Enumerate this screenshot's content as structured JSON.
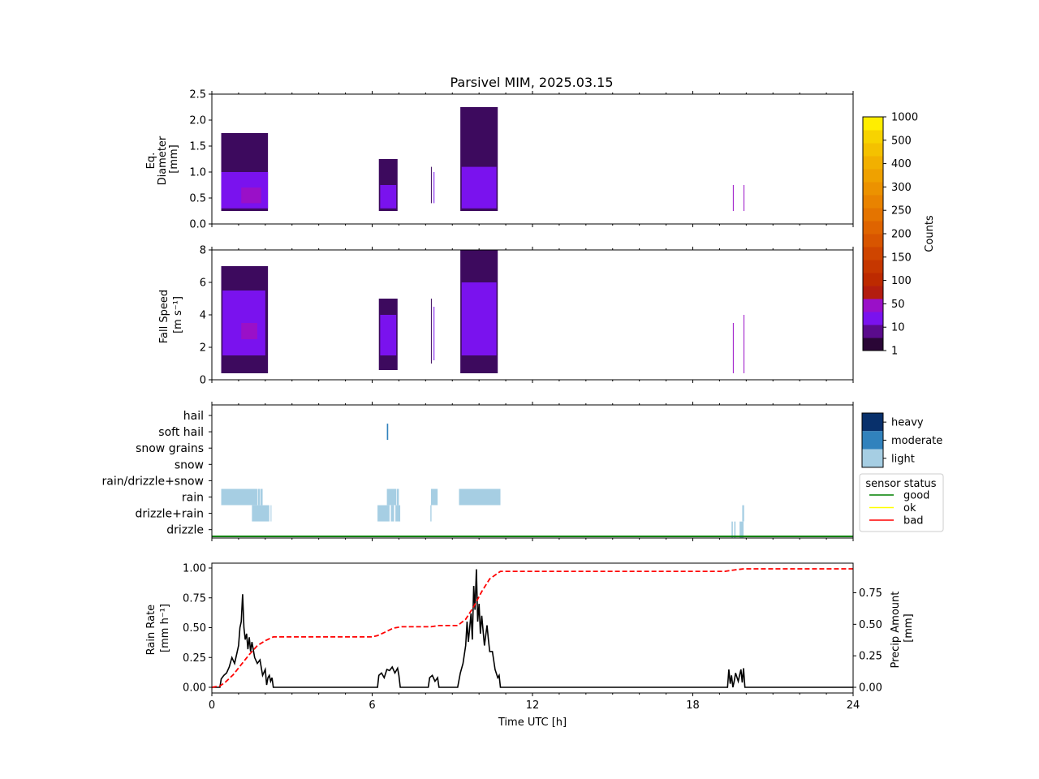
{
  "chart_data": [
    {
      "type": "heatmap",
      "title": "Parsivel MIM, 2025.03.15",
      "ylabel_lines": [
        "Eq.",
        "Diameter",
        "[mm]"
      ],
      "xlim": [
        0,
        24
      ],
      "ylim": [
        0,
        2.5
      ],
      "yticks": [
        "0.0",
        "0.5",
        "1.0",
        "1.5",
        "2.0",
        "2.5"
      ],
      "ytick_values": [
        0,
        0.5,
        1.0,
        1.5,
        2.0,
        2.5
      ],
      "blocks": [
        {
          "t0": 0.35,
          "t1": 2.1,
          "y0": 0.25,
          "y1": 1.75,
          "color": "#3d0a5e"
        },
        {
          "t0": 0.35,
          "t1": 2.1,
          "y0": 0.3,
          "y1": 1.0,
          "color": "#7a12ee"
        },
        {
          "t0": 1.1,
          "t1": 1.85,
          "y0": 0.4,
          "y1": 0.7,
          "color": "#9a10c8"
        },
        {
          "t0": 6.25,
          "t1": 6.95,
          "y0": 0.25,
          "y1": 1.25,
          "color": "#3d0a5e"
        },
        {
          "t0": 6.3,
          "t1": 6.9,
          "y0": 0.3,
          "y1": 0.75,
          "color": "#7a12ee"
        },
        {
          "t0": 8.2,
          "t1": 8.23,
          "y0": 0.4,
          "y1": 1.1,
          "color": "#3d0a5e"
        },
        {
          "t0": 8.3,
          "t1": 8.33,
          "y0": 0.4,
          "y1": 1.0,
          "color": "#7a12ee"
        },
        {
          "t0": 9.3,
          "t1": 10.7,
          "y0": 0.25,
          "y1": 2.25,
          "color": "#3d0a5e"
        },
        {
          "t0": 9.35,
          "t1": 10.65,
          "y0": 0.3,
          "y1": 1.1,
          "color": "#7a12ee"
        },
        {
          "t0": 19.5,
          "t1": 19.53,
          "y0": 0.25,
          "y1": 0.75,
          "color": "#9a10c8"
        },
        {
          "t0": 19.9,
          "t1": 19.93,
          "y0": 0.25,
          "y1": 0.75,
          "color": "#9a10c8"
        }
      ]
    },
    {
      "type": "heatmap",
      "ylabel_lines": [
        "Fall Speed",
        "[m s⁻¹]"
      ],
      "xlim": [
        0,
        24
      ],
      "ylim": [
        0,
        8
      ],
      "yticks": [
        "0",
        "2",
        "4",
        "6",
        "8"
      ],
      "ytick_values": [
        0,
        2,
        4,
        6,
        8
      ],
      "blocks": [
        {
          "t0": 0.35,
          "t1": 2.1,
          "y0": 0.4,
          "y1": 7.0,
          "color": "#3d0a5e"
        },
        {
          "t0": 0.4,
          "t1": 2.0,
          "y0": 1.5,
          "y1": 5.5,
          "color": "#7a12ee"
        },
        {
          "t0": 1.1,
          "t1": 1.7,
          "y0": 2.5,
          "y1": 3.5,
          "color": "#9a10c8"
        },
        {
          "t0": 6.25,
          "t1": 6.95,
          "y0": 0.6,
          "y1": 5.0,
          "color": "#3d0a5e"
        },
        {
          "t0": 6.3,
          "t1": 6.9,
          "y0": 1.5,
          "y1": 4.0,
          "color": "#7a12ee"
        },
        {
          "t0": 8.2,
          "t1": 8.23,
          "y0": 1.0,
          "y1": 5.0,
          "color": "#3d0a5e"
        },
        {
          "t0": 8.3,
          "t1": 8.33,
          "y0": 1.2,
          "y1": 4.5,
          "color": "#7a12ee"
        },
        {
          "t0": 9.3,
          "t1": 10.7,
          "y0": 0.4,
          "y1": 8.0,
          "color": "#3d0a5e"
        },
        {
          "t0": 9.35,
          "t1": 10.65,
          "y0": 1.5,
          "y1": 6.0,
          "color": "#7a12ee"
        },
        {
          "t0": 19.5,
          "t1": 19.53,
          "y0": 0.4,
          "y1": 3.5,
          "color": "#9a10c8"
        },
        {
          "t0": 19.9,
          "t1": 19.93,
          "y0": 0.4,
          "y1": 4.0,
          "color": "#9a10c8"
        }
      ],
      "colorbar": {
        "label": "Counts",
        "ticks": [
          "1",
          "10",
          "50",
          "100",
          "150",
          "200",
          "250",
          "300",
          "400",
          "500",
          "1000"
        ],
        "colors": [
          "#2a0636",
          "#5a0b8c",
          "#7a12ee",
          "#9a10c8",
          "#b31d0f",
          "#bd2a00",
          "#c63700",
          "#cf4500",
          "#d85500",
          "#df6400",
          "#e47400",
          "#e98300",
          "#ec9200",
          "#efa100",
          "#f2b000",
          "#f4c100",
          "#f7d300",
          "#ffee00"
        ]
      }
    },
    {
      "type": "categorical",
      "categories": [
        "hail",
        "soft hail",
        "snow grains",
        "snow",
        "rain/drizzle+snow",
        "rain",
        "drizzle+rain",
        "drizzle"
      ],
      "xlim": [
        0,
        24
      ],
      "segments": [
        {
          "cat": "rain",
          "t0": 0.35,
          "t1": 1.7,
          "intensity": "light"
        },
        {
          "cat": "rain",
          "t0": 1.72,
          "t1": 1.8,
          "intensity": "light"
        },
        {
          "cat": "rain",
          "t0": 1.82,
          "t1": 1.9,
          "intensity": "light"
        },
        {
          "cat": "drizzle+rain",
          "t0": 1.5,
          "t1": 2.15,
          "intensity": "light"
        },
        {
          "cat": "drizzle+rain",
          "t0": 2.2,
          "t1": 2.23,
          "intensity": "light"
        },
        {
          "cat": "rain",
          "t0": 6.55,
          "t1": 6.9,
          "intensity": "light"
        },
        {
          "cat": "rain",
          "t0": 6.92,
          "t1": 7.0,
          "intensity": "light"
        },
        {
          "cat": "drizzle+rain",
          "t0": 6.2,
          "t1": 6.65,
          "intensity": "light"
        },
        {
          "cat": "drizzle+rain",
          "t0": 6.7,
          "t1": 6.82,
          "intensity": "light"
        },
        {
          "cat": "drizzle+rain",
          "t0": 6.87,
          "t1": 7.05,
          "intensity": "light"
        },
        {
          "cat": "soft hail",
          "t0": 6.55,
          "t1": 6.6,
          "intensity": "moderate"
        },
        {
          "cat": "rain",
          "t0": 8.2,
          "t1": 8.45,
          "intensity": "light"
        },
        {
          "cat": "drizzle+rain",
          "t0": 8.18,
          "t1": 8.22,
          "intensity": "light"
        },
        {
          "cat": "rain",
          "t0": 9.25,
          "t1": 10.8,
          "intensity": "light"
        },
        {
          "cat": "drizzle",
          "t0": 19.45,
          "t1": 19.5,
          "intensity": "light"
        },
        {
          "cat": "drizzle",
          "t0": 19.55,
          "t1": 19.6,
          "intensity": "light"
        },
        {
          "cat": "drizzle",
          "t0": 19.75,
          "t1": 19.9,
          "intensity": "light"
        },
        {
          "cat": "drizzle+rain",
          "t0": 19.85,
          "t1": 19.92,
          "intensity": "light"
        }
      ],
      "status_line": {
        "status": "good",
        "t0": 0,
        "t1": 24
      },
      "intensity_legend": {
        "items": [
          {
            "label": "heavy",
            "color": "#08306b"
          },
          {
            "label": "moderate",
            "color": "#3182bd"
          },
          {
            "label": "light",
            "color": "#a6cee3"
          }
        ]
      },
      "status_legend": {
        "title": "sensor status",
        "items": [
          {
            "label": "good",
            "color": "#008000"
          },
          {
            "label": "ok",
            "color": "#ffff00"
          },
          {
            "label": "bad",
            "color": "#ff0000"
          }
        ]
      }
    },
    {
      "type": "line",
      "xlabel": "Time UTC [h]",
      "ylabel_lines": [
        "Rain Rate",
        "[mm h⁻¹]"
      ],
      "y2label_lines": [
        "Precip Amount",
        "[mm]"
      ],
      "xlim": [
        0,
        24
      ],
      "xticks": [
        "0",
        "6",
        "12",
        "18",
        "24"
      ],
      "xtick_values": [
        0,
        6,
        12,
        18,
        24
      ],
      "ylim": [
        0,
        1.04
      ],
      "yticks": [
        "0.00",
        "0.25",
        "0.50",
        "0.75",
        "1.00"
      ],
      "ytick_values": [
        0,
        0.25,
        0.5,
        0.75,
        1.0
      ],
      "y2lim": [
        0,
        0.97
      ],
      "y2ticks": [
        "0.00",
        "0.25",
        "0.50",
        "0.75"
      ],
      "y2tick_values": [
        0,
        0.25,
        0.5,
        0.75
      ],
      "series": [
        {
          "axis": "left",
          "style": "solid",
          "color": "#000000",
          "x": [
            0,
            0.3,
            0.35,
            0.45,
            0.55,
            0.65,
            0.75,
            0.85,
            0.95,
            1.0,
            1.05,
            1.1,
            1.15,
            1.2,
            1.25,
            1.3,
            1.35,
            1.4,
            1.45,
            1.5,
            1.6,
            1.7,
            1.8,
            1.9,
            2.0,
            2.05,
            2.1,
            2.15,
            2.2,
            2.25,
            2.3,
            6.2,
            6.25,
            6.35,
            6.45,
            6.55,
            6.65,
            6.75,
            6.85,
            6.95,
            7.0,
            7.05,
            8.1,
            8.15,
            8.25,
            8.35,
            8.45,
            8.5,
            9.2,
            9.3,
            9.4,
            9.5,
            9.55,
            9.6,
            9.7,
            9.75,
            9.8,
            9.85,
            9.9,
            9.95,
            10.0,
            10.05,
            10.1,
            10.2,
            10.3,
            10.35,
            10.4,
            10.5,
            10.6,
            10.7,
            10.75,
            10.8,
            19.3,
            19.35,
            19.4,
            19.45,
            19.5,
            19.55,
            19.6,
            19.7,
            19.75,
            19.8,
            19.85,
            19.9,
            19.95,
            24
          ],
          "y": [
            0,
            0,
            0.07,
            0.1,
            0.12,
            0.17,
            0.25,
            0.2,
            0.3,
            0.35,
            0.5,
            0.55,
            0.78,
            0.5,
            0.4,
            0.45,
            0.32,
            0.42,
            0.3,
            0.38,
            0.25,
            0.2,
            0.23,
            0.1,
            0.15,
            0.02,
            0.08,
            0.1,
            0.05,
            0.08,
            0,
            0,
            0.1,
            0.12,
            0.08,
            0.15,
            0.14,
            0.17,
            0.12,
            0.16,
            0.1,
            0,
            0,
            0.08,
            0.1,
            0.05,
            0.08,
            0,
            0,
            0.12,
            0.2,
            0.35,
            0.55,
            0.38,
            0.62,
            0.4,
            0.85,
            0.65,
            0.99,
            0.55,
            0.7,
            0.45,
            0.6,
            0.35,
            0.52,
            0.4,
            0.3,
            0.3,
            0.15,
            0.08,
            0.1,
            0,
            0,
            0.15,
            0.03,
            0.1,
            0,
            0.05,
            0.12,
            0.05,
            0.1,
            0.15,
            0.04,
            0.16,
            0,
            0
          ]
        },
        {
          "axis": "right",
          "style": "dashed",
          "color": "#ff0000",
          "x": [
            0,
            0.3,
            0.5,
            0.8,
            1.1,
            1.4,
            1.7,
            2.0,
            2.3,
            2.5,
            6.0,
            6.2,
            6.5,
            6.8,
            7.1,
            8.2,
            8.5,
            9.2,
            9.5,
            9.8,
            10.1,
            10.4,
            10.8,
            19.2,
            19.5,
            19.9,
            24
          ],
          "y": [
            0,
            0.01,
            0.04,
            0.1,
            0.18,
            0.26,
            0.33,
            0.37,
            0.4,
            0.4,
            0.4,
            0.41,
            0.44,
            0.47,
            0.48,
            0.48,
            0.49,
            0.49,
            0.54,
            0.64,
            0.76,
            0.86,
            0.92,
            0.92,
            0.93,
            0.94,
            0.94
          ]
        }
      ]
    }
  ]
}
